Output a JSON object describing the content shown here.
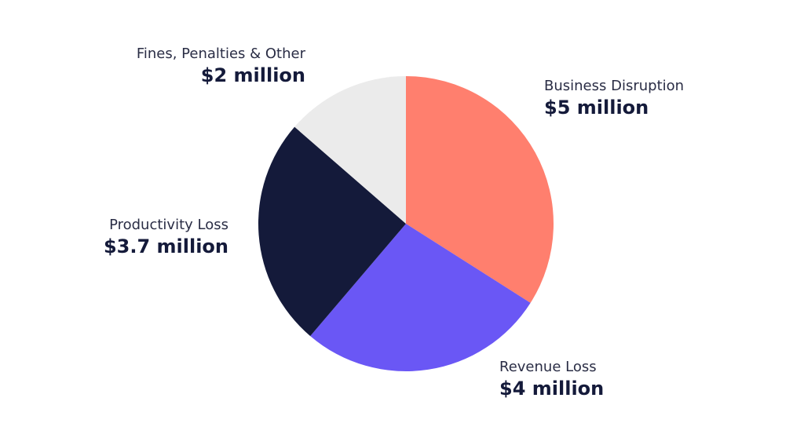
{
  "chart_data": {
    "type": "pie",
    "title": "",
    "unit": "million USD",
    "start": "top",
    "direction": "clockwise",
    "slices": [
      {
        "label": "Business Disruption",
        "value": 5,
        "value_label": "$5 million",
        "color": "#FF7F6E"
      },
      {
        "label": "Revenue Loss",
        "value": 4,
        "value_label": "$4 million",
        "color": "#6A57F5"
      },
      {
        "label": "Productivity Loss",
        "value": 3.7,
        "value_label": "$3.7 million",
        "color": "#141A3A"
      },
      {
        "label": "Fines, Penalties & Other",
        "value": 2,
        "value_label": "$2 million",
        "color": "#EBEBEB"
      }
    ]
  }
}
